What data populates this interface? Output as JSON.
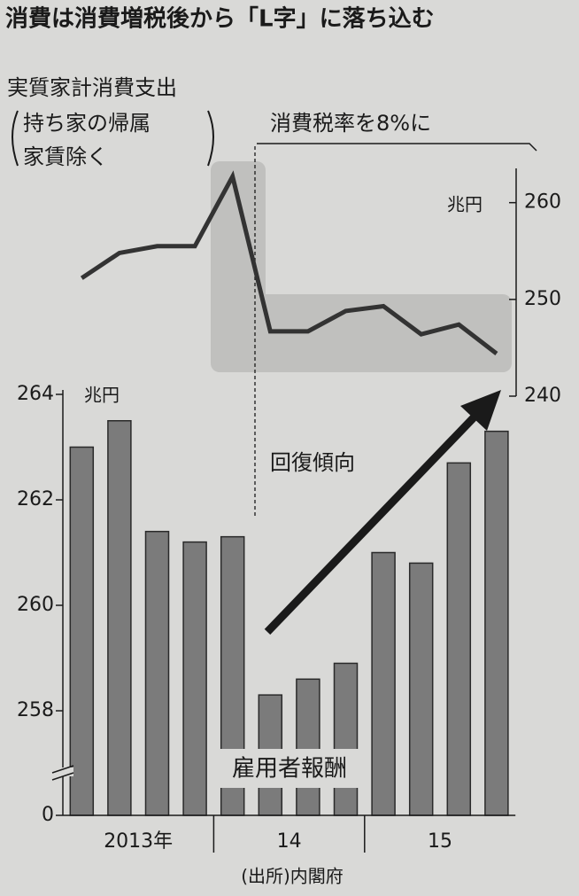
{
  "title": "消費は消費増税後から「L字」に落ち込む",
  "source": "(出所)内閣府",
  "chart_data": [
    {
      "type": "line",
      "title": "実質家計消費支出",
      "subtitle": [
        "持ち家の帰属",
        "家賃除く"
      ],
      "annotation": "消費税率を8%に",
      "unit": "兆円",
      "color": "#333333",
      "values": [
        252.2,
        254.8,
        255.5,
        255.5,
        262.7,
        246.7,
        246.7,
        248.8,
        249.3,
        246.4,
        247.4,
        244.4
      ],
      "ylim": [
        240,
        264
      ],
      "yticks": [
        240,
        250,
        260
      ]
    },
    {
      "type": "bar",
      "title": "雇用者報酬",
      "annotation": "回復傾向",
      "unit": "兆円",
      "color": "#7b7b7b",
      "categories": [
        "2013年",
        null,
        null,
        null,
        "14",
        null,
        null,
        null,
        "15",
        null,
        null,
        null
      ],
      "values": [
        263.0,
        263.5,
        261.4,
        261.2,
        261.3,
        258.3,
        258.6,
        258.9,
        261.0,
        260.8,
        262.7,
        263.3
      ],
      "ylim": [
        0,
        264
      ],
      "yticks": [
        0,
        258,
        260,
        262,
        264
      ],
      "axis_break": true
    }
  ]
}
